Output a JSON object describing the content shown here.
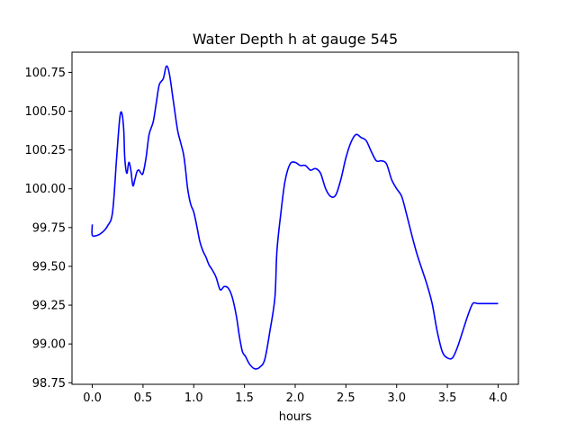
{
  "chart_data": {
    "type": "line",
    "title": "Water Depth h at gauge 545",
    "xlabel": "hours",
    "ylabel": "",
    "xlim": [
      -0.2,
      4.2
    ],
    "ylim": [
      98.74,
      100.88
    ],
    "xticks": [
      0.0,
      0.5,
      1.0,
      1.5,
      2.0,
      2.5,
      3.0,
      3.5,
      4.0
    ],
    "xtick_labels": [
      "0.0",
      "0.5",
      "1.0",
      "1.5",
      "2.0",
      "2.5",
      "3.0",
      "3.5",
      "4.0"
    ],
    "yticks": [
      98.75,
      99.0,
      99.25,
      99.5,
      99.75,
      100.0,
      100.25,
      100.5,
      100.75
    ],
    "ytick_labels": [
      "98.75",
      "99.00",
      "99.25",
      "99.50",
      "99.75",
      "100.00",
      "100.25",
      "100.50",
      "100.75"
    ],
    "grid": false,
    "series": [
      {
        "color": "#0000ff",
        "x": [
          0.0,
          0.0,
          0.05,
          0.1,
          0.15,
          0.2,
          0.24,
          0.27,
          0.29,
          0.31,
          0.32,
          0.34,
          0.36,
          0.38,
          0.4,
          0.42,
          0.44,
          0.46,
          0.48,
          0.5,
          0.53,
          0.56,
          0.6,
          0.63,
          0.66,
          0.7,
          0.73,
          0.76,
          0.8,
          0.84,
          0.87,
          0.9,
          0.92,
          0.94,
          0.97,
          1.0,
          1.03,
          1.06,
          1.09,
          1.12,
          1.15,
          1.18,
          1.22,
          1.26,
          1.3,
          1.34,
          1.38,
          1.42,
          1.45,
          1.48,
          1.51,
          1.55,
          1.6,
          1.65,
          1.7,
          1.75,
          1.8,
          1.82,
          1.86,
          1.9,
          1.95,
          2.0,
          2.05,
          2.1,
          2.15,
          2.2,
          2.25,
          2.3,
          2.35,
          2.4,
          2.45,
          2.5,
          2.55,
          2.6,
          2.65,
          2.7,
          2.75,
          2.8,
          2.85,
          2.9,
          2.95,
          3.0,
          3.05,
          3.1,
          3.15,
          3.2,
          3.25,
          3.3,
          3.35,
          3.4,
          3.45,
          3.5,
          3.55,
          3.6,
          3.65,
          3.7,
          3.75,
          3.8,
          3.85,
          3.9,
          3.95,
          4.0
        ],
        "y": [
          99.77,
          99.7,
          99.7,
          99.72,
          99.76,
          99.85,
          100.2,
          100.45,
          100.49,
          100.38,
          100.2,
          100.1,
          100.17,
          100.12,
          100.02,
          100.06,
          100.11,
          100.12,
          100.1,
          100.1,
          100.2,
          100.35,
          100.43,
          100.55,
          100.67,
          100.71,
          100.79,
          100.74,
          100.56,
          100.38,
          100.3,
          100.22,
          100.12,
          100.0,
          99.9,
          99.85,
          99.76,
          99.66,
          99.6,
          99.56,
          99.51,
          99.48,
          99.43,
          99.35,
          99.37,
          99.36,
          99.3,
          99.18,
          99.05,
          98.95,
          98.92,
          98.87,
          98.84,
          98.85,
          98.9,
          99.08,
          99.3,
          99.6,
          99.85,
          100.05,
          100.16,
          100.17,
          100.15,
          100.15,
          100.12,
          100.13,
          100.1,
          100.0,
          99.95,
          99.96,
          100.06,
          100.2,
          100.3,
          100.35,
          100.33,
          100.31,
          100.24,
          100.18,
          100.18,
          100.16,
          100.06,
          100.0,
          99.95,
          99.83,
          99.7,
          99.58,
          99.48,
          99.38,
          99.26,
          99.08,
          98.95,
          98.91,
          98.91,
          98.98,
          99.08,
          99.18,
          99.26,
          99.26,
          99.26,
          99.26,
          99.26,
          99.26
        ]
      }
    ]
  }
}
